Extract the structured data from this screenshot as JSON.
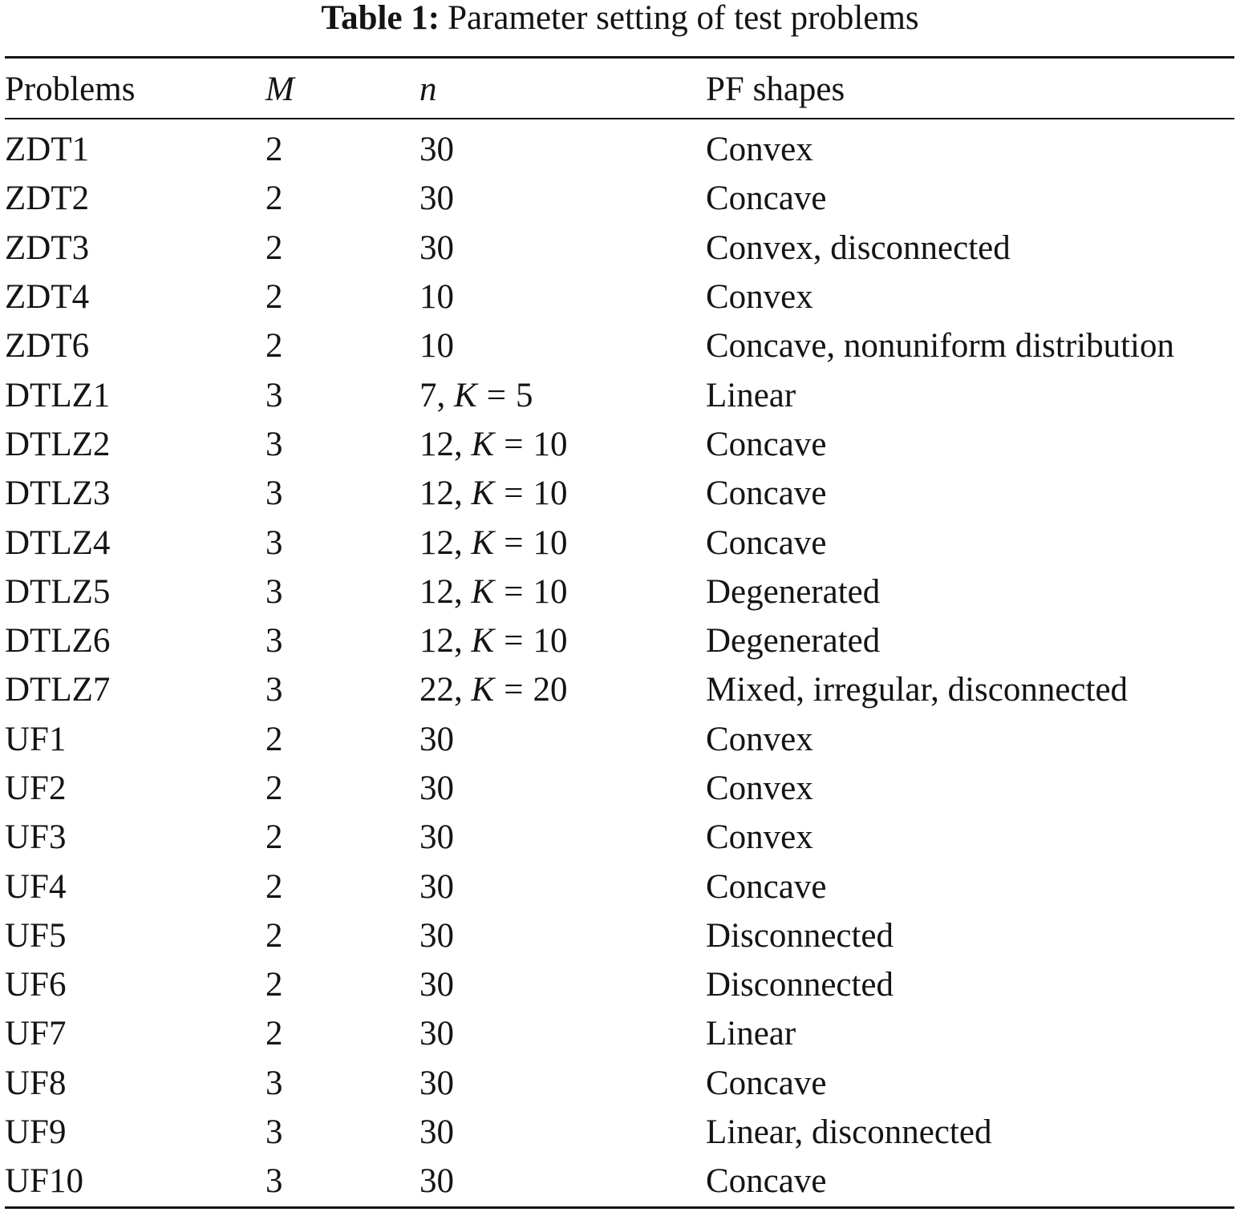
{
  "caption": {
    "label": "Table 1:",
    "text": "Parameter setting of test problems"
  },
  "table": {
    "headers": {
      "problems": "Problems",
      "m": "M",
      "n": "n",
      "pf_shapes": "PF shapes"
    },
    "rows": [
      {
        "problem": "ZDT1",
        "m": "2",
        "n": {
          "value": "30"
        },
        "pf_shape": "Convex"
      },
      {
        "problem": "ZDT2",
        "m": "2",
        "n": {
          "value": "30"
        },
        "pf_shape": "Concave"
      },
      {
        "problem": "ZDT3",
        "m": "2",
        "n": {
          "value": "30"
        },
        "pf_shape": "Convex, disconnected"
      },
      {
        "problem": "ZDT4",
        "m": "2",
        "n": {
          "value": "10"
        },
        "pf_shape": "Convex"
      },
      {
        "problem": "ZDT6",
        "m": "2",
        "n": {
          "value": "10"
        },
        "pf_shape": "Concave, nonuniform distribution"
      },
      {
        "problem": "DTLZ1",
        "m": "3",
        "n": {
          "value": "7",
          "k_symbol": "K",
          "k_value": "5"
        },
        "pf_shape": "Linear"
      },
      {
        "problem": "DTLZ2",
        "m": "3",
        "n": {
          "value": "12",
          "k_symbol": "K",
          "k_value": "10"
        },
        "pf_shape": "Concave"
      },
      {
        "problem": "DTLZ3",
        "m": "3",
        "n": {
          "value": "12",
          "k_symbol": "K",
          "k_value": "10"
        },
        "pf_shape": "Concave"
      },
      {
        "problem": "DTLZ4",
        "m": "3",
        "n": {
          "value": "12",
          "k_symbol": "K",
          "k_value": "10"
        },
        "pf_shape": "Concave"
      },
      {
        "problem": "DTLZ5",
        "m": "3",
        "n": {
          "value": "12",
          "k_symbol": "K",
          "k_value": "10"
        },
        "pf_shape": "Degenerated"
      },
      {
        "problem": "DTLZ6",
        "m": "3",
        "n": {
          "value": "12",
          "k_symbol": "K",
          "k_value": "10"
        },
        "pf_shape": "Degenerated"
      },
      {
        "problem": "DTLZ7",
        "m": "3",
        "n": {
          "value": "22",
          "k_symbol": "K",
          "k_value": "20"
        },
        "pf_shape": "Mixed, irregular, disconnected"
      },
      {
        "problem": "UF1",
        "m": "2",
        "n": {
          "value": "30"
        },
        "pf_shape": "Convex"
      },
      {
        "problem": "UF2",
        "m": "2",
        "n": {
          "value": "30"
        },
        "pf_shape": "Convex"
      },
      {
        "problem": "UF3",
        "m": "2",
        "n": {
          "value": "30"
        },
        "pf_shape": "Convex"
      },
      {
        "problem": "UF4",
        "m": "2",
        "n": {
          "value": "30"
        },
        "pf_shape": "Concave"
      },
      {
        "problem": "UF5",
        "m": "2",
        "n": {
          "value": "30"
        },
        "pf_shape": "Disconnected"
      },
      {
        "problem": "UF6",
        "m": "2",
        "n": {
          "value": "30"
        },
        "pf_shape": "Disconnected"
      },
      {
        "problem": "UF7",
        "m": "2",
        "n": {
          "value": "30"
        },
        "pf_shape": "Linear"
      },
      {
        "problem": "UF8",
        "m": "3",
        "n": {
          "value": "30"
        },
        "pf_shape": "Concave"
      },
      {
        "problem": "UF9",
        "m": "3",
        "n": {
          "value": "30"
        },
        "pf_shape": "Linear, disconnected"
      },
      {
        "problem": "UF10",
        "m": "3",
        "n": {
          "value": "30"
        },
        "pf_shape": "Concave"
      }
    ]
  }
}
